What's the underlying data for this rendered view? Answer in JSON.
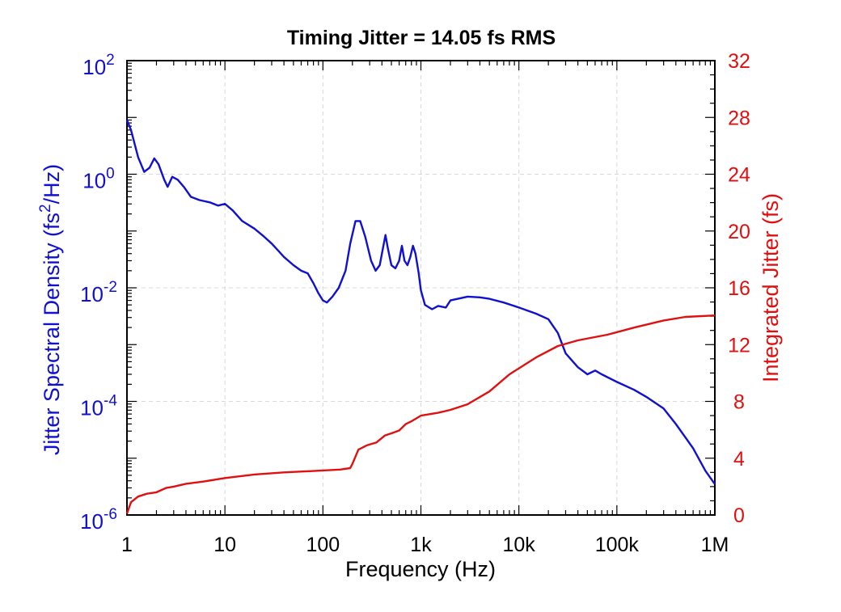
{
  "chart_data": {
    "type": "line",
    "title": "Timing Jitter = 14.05 fs RMS",
    "xlabel": "Frequency (Hz)",
    "xscale": "log",
    "xlim": [
      1,
      1000000
    ],
    "xticks": [
      {
        "value": 1,
        "label": "1"
      },
      {
        "value": 10,
        "label": "10"
      },
      {
        "value": 100,
        "label": "100"
      },
      {
        "value": 1000,
        "label": "1k"
      },
      {
        "value": 10000,
        "label": "10k"
      },
      {
        "value": 100000,
        "label": "100k"
      },
      {
        "value": 1000000,
        "label": "1M"
      }
    ],
    "y_left": {
      "label_pre": "Jitter Spectral Density (fs",
      "label_sup": "2",
      "label_post": "/Hz)",
      "scale": "log",
      "lim": [
        1e-06,
        100
      ],
      "color": "#1010d0",
      "ticks": [
        {
          "value": 100,
          "base": "10",
          "exp": "2"
        },
        {
          "value": 1,
          "base": "10",
          "exp": "0"
        },
        {
          "value": 0.01,
          "base": "10",
          "exp": "-2"
        },
        {
          "value": 0.0001,
          "base": "10",
          "exp": "-4"
        },
        {
          "value": 1e-06,
          "base": "10",
          "exp": "-6"
        }
      ]
    },
    "y_right": {
      "label": "Integrated Jitter (fs)",
      "scale": "linear",
      "lim": [
        0,
        32
      ],
      "color": "#e01010",
      "ticks": [
        {
          "value": 0,
          "label": "0"
        },
        {
          "value": 4,
          "label": "4"
        },
        {
          "value": 8,
          "label": "8"
        },
        {
          "value": 12,
          "label": "12"
        },
        {
          "value": 16,
          "label": "16"
        },
        {
          "value": 20,
          "label": "20"
        },
        {
          "value": 24,
          "label": "24"
        },
        {
          "value": 28,
          "label": "28"
        },
        {
          "value": 32,
          "label": "32"
        }
      ]
    },
    "grid": true,
    "series": [
      {
        "axis": "left",
        "color": "#1010d0",
        "points": [
          [
            1,
            9.0
          ],
          [
            1.1,
            6.0
          ],
          [
            1.3,
            2.0
          ],
          [
            1.5,
            1.1
          ],
          [
            1.7,
            1.3
          ],
          [
            1.9,
            1.9
          ],
          [
            2.1,
            1.5
          ],
          [
            2.4,
            0.8
          ],
          [
            2.6,
            0.6
          ],
          [
            2.9,
            0.9
          ],
          [
            3.3,
            0.8
          ],
          [
            3.8,
            0.6
          ],
          [
            4.5,
            0.4
          ],
          [
            5.5,
            0.35
          ],
          [
            7,
            0.32
          ],
          [
            8.5,
            0.28
          ],
          [
            10,
            0.3
          ],
          [
            12,
            0.23
          ],
          [
            15,
            0.15
          ],
          [
            20,
            0.11
          ],
          [
            25,
            0.08
          ],
          [
            30,
            0.06
          ],
          [
            35,
            0.045
          ],
          [
            40,
            0.035
          ],
          [
            50,
            0.025
          ],
          [
            60,
            0.02
          ],
          [
            70,
            0.018
          ],
          [
            80,
            0.012
          ],
          [
            90,
            0.008
          ],
          [
            100,
            0.006
          ],
          [
            110,
            0.0055
          ],
          [
            125,
            0.007
          ],
          [
            145,
            0.01
          ],
          [
            170,
            0.02
          ],
          [
            190,
            0.06
          ],
          [
            215,
            0.15
          ],
          [
            240,
            0.15
          ],
          [
            270,
            0.08
          ],
          [
            310,
            0.03
          ],
          [
            345,
            0.02
          ],
          [
            380,
            0.025
          ],
          [
            410,
            0.05
          ],
          [
            435,
            0.085
          ],
          [
            460,
            0.05
          ],
          [
            500,
            0.025
          ],
          [
            550,
            0.022
          ],
          [
            600,
            0.03
          ],
          [
            640,
            0.055
          ],
          [
            680,
            0.03
          ],
          [
            730,
            0.025
          ],
          [
            780,
            0.035
          ],
          [
            830,
            0.055
          ],
          [
            880,
            0.04
          ],
          [
            950,
            0.018
          ],
          [
            1000,
            0.009
          ],
          [
            1100,
            0.005
          ],
          [
            1300,
            0.0042
          ],
          [
            1500,
            0.0048
          ],
          [
            1800,
            0.0045
          ],
          [
            2000,
            0.006
          ],
          [
            3000,
            0.007
          ],
          [
            4000,
            0.0068
          ],
          [
            5000,
            0.0064
          ],
          [
            7000,
            0.0055
          ],
          [
            10000,
            0.0045
          ],
          [
            15000,
            0.0035
          ],
          [
            20000,
            0.0028
          ],
          [
            25000,
            0.0016
          ],
          [
            30000,
            0.0007
          ],
          [
            40000,
            0.0004
          ],
          [
            50000,
            0.0003
          ],
          [
            60000,
            0.00035
          ],
          [
            70000,
            0.0003
          ],
          [
            100000,
            0.00022
          ],
          [
            150000,
            0.00016
          ],
          [
            200000,
            0.00012
          ],
          [
            300000,
            7.5e-05
          ],
          [
            400000,
            4e-05
          ],
          [
            600000,
            1.5e-05
          ],
          [
            800000,
            6e-06
          ],
          [
            1000000,
            3.5e-06
          ]
        ]
      },
      {
        "axis": "right",
        "color": "#e01010",
        "points": [
          [
            1,
            0.1
          ],
          [
            1.1,
            0.9
          ],
          [
            1.3,
            1.3
          ],
          [
            1.6,
            1.5
          ],
          [
            2,
            1.6
          ],
          [
            2.5,
            1.9
          ],
          [
            3,
            2.0
          ],
          [
            4,
            2.2
          ],
          [
            6,
            2.35
          ],
          [
            10,
            2.6
          ],
          [
            20,
            2.85
          ],
          [
            40,
            3.0
          ],
          [
            80,
            3.1
          ],
          [
            150,
            3.2
          ],
          [
            190,
            3.3
          ],
          [
            200,
            3.6
          ],
          [
            230,
            4.6
          ],
          [
            280,
            4.9
          ],
          [
            350,
            5.1
          ],
          [
            430,
            5.6
          ],
          [
            500,
            5.75
          ],
          [
            600,
            5.95
          ],
          [
            700,
            6.4
          ],
          [
            800,
            6.6
          ],
          [
            1000,
            7.0
          ],
          [
            1500,
            7.2
          ],
          [
            2000,
            7.4
          ],
          [
            3000,
            7.8
          ],
          [
            5000,
            8.7
          ],
          [
            8000,
            9.9
          ],
          [
            15000,
            11.1
          ],
          [
            25000,
            11.9
          ],
          [
            40000,
            12.3
          ],
          [
            80000,
            12.7
          ],
          [
            150000,
            13.2
          ],
          [
            300000,
            13.7
          ],
          [
            500000,
            13.95
          ],
          [
            1000000,
            14.05
          ]
        ]
      }
    ]
  }
}
